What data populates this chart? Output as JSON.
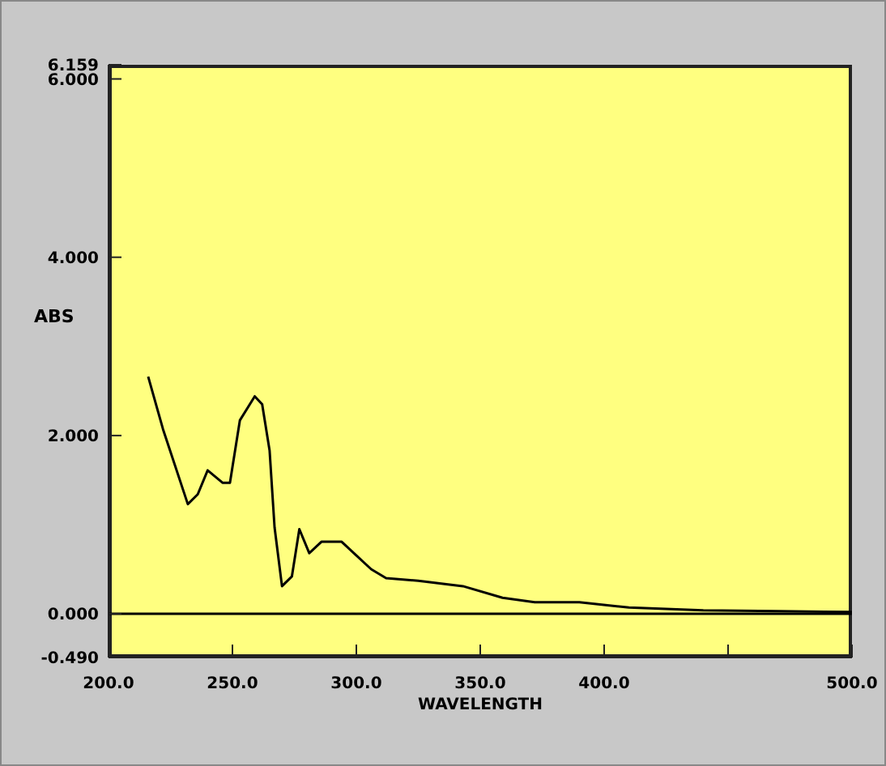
{
  "chart_data": {
    "type": "line",
    "xlabel": "WAVELENGTH",
    "ylabel": "ABS",
    "x": [
      216,
      222,
      232,
      236,
      240,
      246,
      249,
      253,
      259,
      262,
      265,
      267,
      270,
      274,
      277,
      281,
      286,
      294,
      299,
      306,
      312,
      325,
      343,
      359,
      372,
      390,
      410,
      440,
      470,
      500
    ],
    "series": [
      {
        "color": "#000000",
        "values": [
          2.66,
          2.07,
          1.23,
          1.34,
          1.61,
          1.47,
          1.47,
          2.17,
          2.44,
          2.35,
          1.83,
          0.97,
          0.31,
          0.42,
          0.95,
          0.68,
          0.81,
          0.81,
          0.68,
          0.5,
          0.4,
          0.37,
          0.31,
          0.18,
          0.13,
          0.13,
          0.07,
          0.04,
          0.03,
          0.02
        ]
      }
    ],
    "xlim": [
      200,
      500
    ],
    "xticks": [
      {
        "value": 200,
        "label": "200.0"
      },
      {
        "value": 250,
        "label": "250.0"
      },
      {
        "value": 300,
        "label": "300.0"
      },
      {
        "value": 350,
        "label": "350.0"
      },
      {
        "value": 400,
        "label": "400.0"
      },
      {
        "value": 450,
        "label": null
      },
      {
        "value": 500,
        "label": "500.0"
      }
    ],
    "ylim": [
      -0.49,
      6.159
    ],
    "yticks": [
      {
        "value": -0.49,
        "label": "-0.490"
      },
      {
        "value": 0,
        "label": "0.000"
      },
      {
        "value": 2,
        "label": "2.000"
      },
      {
        "value": 4,
        "label": "4.000"
      },
      {
        "value": 6,
        "label": "6.000"
      },
      {
        "value": 6.159,
        "label": "6.159"
      }
    ],
    "ref_lines": [
      {
        "axis": "y",
        "value": 0,
        "color": "#000000"
      }
    ],
    "grid": false,
    "marker": "none",
    "line_style": "solid"
  }
}
